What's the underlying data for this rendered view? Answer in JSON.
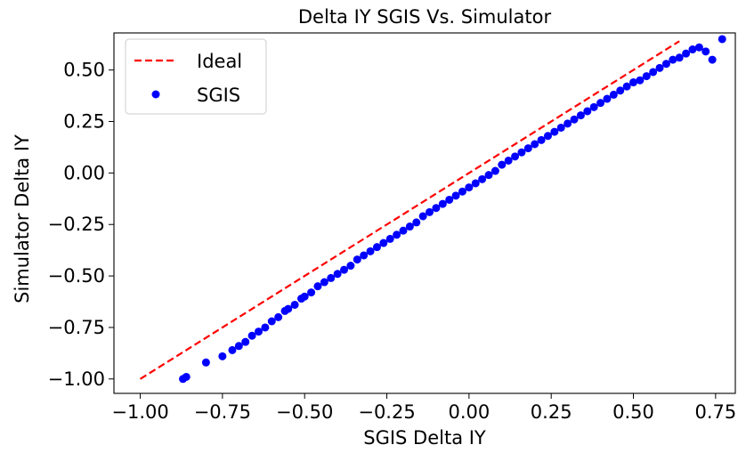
{
  "chart_data": {
    "type": "scatter",
    "title": "Delta IY SGIS Vs. Simulator",
    "xlabel": "SGIS Delta IY",
    "ylabel": "Simulator Delta IY",
    "xlim": [
      -1.08,
      0.81
    ],
    "ylim": [
      -1.07,
      0.68
    ],
    "xticks": [
      -1.0,
      -0.75,
      -0.5,
      -0.25,
      0.0,
      0.25,
      0.5,
      0.75
    ],
    "xtick_labels": [
      "−1.00",
      "−0.75",
      "−0.50",
      "−0.25",
      "0.00",
      "0.25",
      "0.50",
      "0.75"
    ],
    "yticks": [
      -1.0,
      -0.75,
      -0.5,
      -0.25,
      0.0,
      0.25,
      0.5
    ],
    "ytick_labels": [
      "−1.00",
      "−0.75",
      "−0.50",
      "−0.25",
      "0.00",
      "0.25",
      "0.50"
    ],
    "grid": false,
    "legend_position": "top-left",
    "series": [
      {
        "name": "Ideal",
        "kind": "line",
        "style": "dashed",
        "color": "#ff0000",
        "x": [
          -1.0,
          0.64
        ],
        "y": [
          -1.0,
          0.64
        ]
      },
      {
        "name": "SGIS",
        "kind": "scatter",
        "color": "#0000ff",
        "x": [
          -0.87,
          -0.86,
          -0.8,
          -0.75,
          -0.72,
          -0.7,
          -0.68,
          -0.66,
          -0.64,
          -0.62,
          -0.6,
          -0.58,
          -0.56,
          -0.55,
          -0.53,
          -0.51,
          -0.5,
          -0.48,
          -0.46,
          -0.44,
          -0.42,
          -0.4,
          -0.38,
          -0.36,
          -0.34,
          -0.32,
          -0.3,
          -0.28,
          -0.26,
          -0.24,
          -0.22,
          -0.2,
          -0.18,
          -0.16,
          -0.14,
          -0.12,
          -0.1,
          -0.08,
          -0.06,
          -0.04,
          -0.02,
          0.0,
          0.02,
          0.04,
          0.06,
          0.08,
          0.1,
          0.12,
          0.14,
          0.16,
          0.18,
          0.2,
          0.22,
          0.24,
          0.26,
          0.28,
          0.3,
          0.32,
          0.34,
          0.36,
          0.38,
          0.4,
          0.42,
          0.44,
          0.46,
          0.48,
          0.5,
          0.52,
          0.54,
          0.56,
          0.58,
          0.6,
          0.62,
          0.64,
          0.66,
          0.68,
          0.7,
          0.72,
          0.74,
          0.77
        ],
        "y": [
          -1.0,
          -0.99,
          -0.92,
          -0.89,
          -0.86,
          -0.84,
          -0.82,
          -0.79,
          -0.77,
          -0.75,
          -0.72,
          -0.7,
          -0.67,
          -0.66,
          -0.64,
          -0.61,
          -0.6,
          -0.58,
          -0.55,
          -0.53,
          -0.51,
          -0.49,
          -0.47,
          -0.45,
          -0.42,
          -0.4,
          -0.38,
          -0.36,
          -0.34,
          -0.32,
          -0.3,
          -0.28,
          -0.26,
          -0.24,
          -0.21,
          -0.19,
          -0.17,
          -0.15,
          -0.13,
          -0.11,
          -0.09,
          -0.07,
          -0.05,
          -0.03,
          -0.01,
          0.01,
          0.04,
          0.06,
          0.08,
          0.1,
          0.12,
          0.14,
          0.16,
          0.18,
          0.2,
          0.22,
          0.24,
          0.26,
          0.28,
          0.3,
          0.32,
          0.34,
          0.36,
          0.38,
          0.4,
          0.42,
          0.44,
          0.45,
          0.47,
          0.49,
          0.51,
          0.53,
          0.55,
          0.56,
          0.58,
          0.6,
          0.61,
          0.59,
          0.55,
          0.65
        ]
      }
    ]
  }
}
